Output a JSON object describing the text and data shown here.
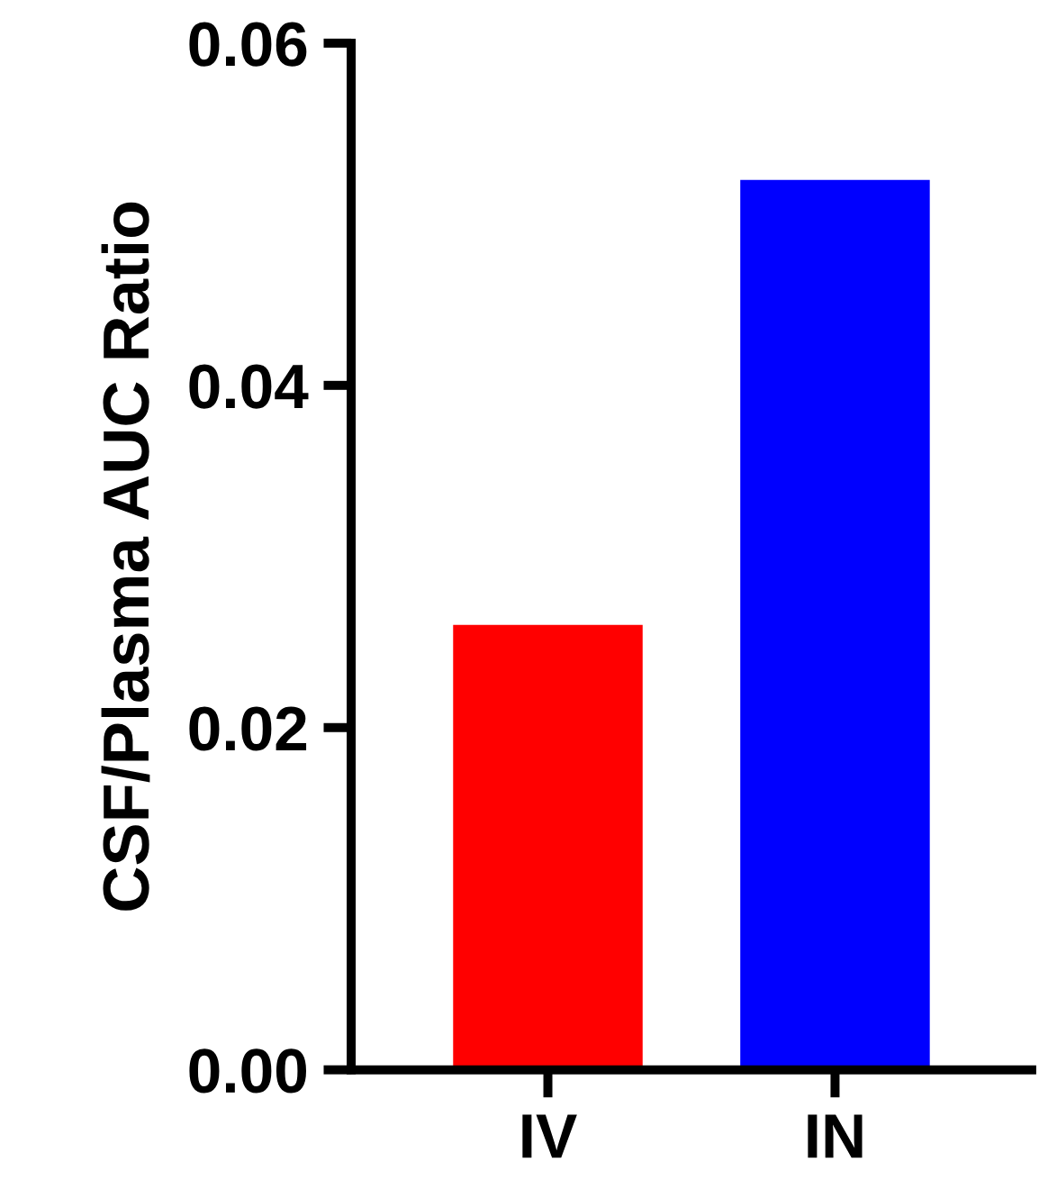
{
  "chart_data": {
    "type": "bar",
    "categories": [
      "IV",
      "IN"
    ],
    "values": [
      0.026,
      0.052
    ],
    "colors": [
      "#ff0000",
      "#0000ff"
    ],
    "ylabel": "CSF/Plasma AUC Ratio",
    "ylim": [
      0,
      0.06
    ],
    "yticks": [
      {
        "value": 0,
        "label": "0.00"
      },
      {
        "value": 0.02,
        "label": "0.02"
      },
      {
        "value": 0.04,
        "label": "0.04"
      },
      {
        "value": 0.06,
        "label": "0.06"
      }
    ],
    "grid": false,
    "legend": false
  }
}
